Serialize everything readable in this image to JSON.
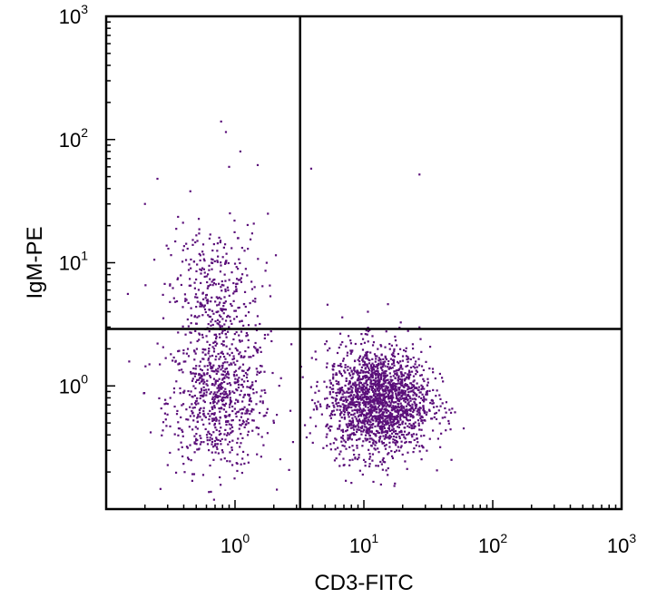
{
  "chart_data": {
    "type": "scatter",
    "title": "",
    "xlabel": "CD3-FITC",
    "ylabel": "IgM-PE",
    "x_scale": "log",
    "y_scale": "log",
    "xlim": [
      0.1,
      1000
    ],
    "ylim": [
      0.1,
      1000
    ],
    "x_ticks": [
      {
        "value": 1,
        "base": "10",
        "exp": "0"
      },
      {
        "value": 10,
        "base": "10",
        "exp": "1"
      },
      {
        "value": 100,
        "base": "10",
        "exp": "2"
      },
      {
        "value": 1000,
        "base": "10",
        "exp": "3"
      }
    ],
    "y_ticks": [
      {
        "value": 1,
        "base": "10",
        "exp": "0"
      },
      {
        "value": 10,
        "base": "10",
        "exp": "1"
      },
      {
        "value": 100,
        "base": "10",
        "exp": "2"
      },
      {
        "value": 1000,
        "base": "10",
        "exp": "3"
      }
    ],
    "quadrant_gates": {
      "x": 3.2,
      "y": 2.9
    },
    "grid": false,
    "legend": "none",
    "point_color": "#5b0f7a",
    "populations": [
      {
        "center_x": 0.75,
        "center_y": 0.75,
        "spread_x": 0.2,
        "spread_y": 0.28,
        "count": 700
      },
      {
        "center_x": 0.7,
        "center_y": 5.0,
        "spread_x": 0.18,
        "spread_y": 0.3,
        "count": 380
      },
      {
        "center_x": 13,
        "center_y": 0.75,
        "spread_x": 0.2,
        "spread_y": 0.22,
        "count": 1900
      }
    ],
    "outlier_points": [
      [
        0.78,
        140
      ],
      [
        0.85,
        115
      ],
      [
        1.1,
        80
      ],
      [
        0.9,
        60
      ],
      [
        1.5,
        62
      ],
      [
        0.25,
        48
      ],
      [
        3.9,
        58
      ],
      [
        27,
        52
      ],
      [
        6.8,
        3.6
      ],
      [
        1.8,
        25
      ],
      [
        0.45,
        38
      ],
      [
        0.2,
        30
      ]
    ]
  }
}
